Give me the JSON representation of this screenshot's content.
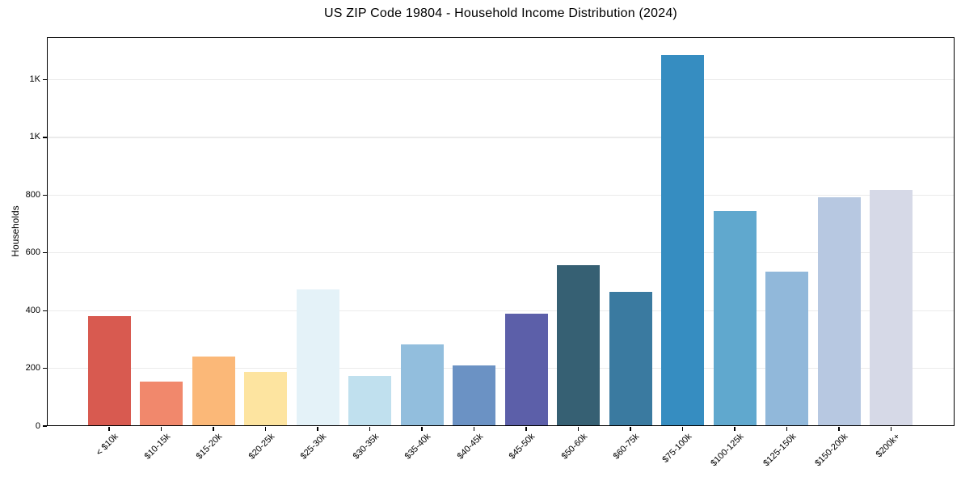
{
  "chart_data": {
    "type": "bar",
    "title": "US ZIP Code 19804 - Household Income Distribution (2024)",
    "xlabel": "",
    "ylabel": "Households",
    "categories": [
      "< $10k",
      "$10-15k",
      "$15-20k",
      "$20-25k",
      "$25-30k",
      "$30-35k",
      "$35-40k",
      "$40-45k",
      "$45-50k",
      "$50-60k",
      "$60-75k",
      "$75-100k",
      "$100-125k",
      "$125-150k",
      "$150-200k",
      "$200k+"
    ],
    "values": [
      382,
      155,
      242,
      188,
      473,
      174,
      283,
      211,
      388,
      558,
      464,
      1285,
      745,
      535,
      792,
      817
    ],
    "bar_colors": [
      "#d85a50",
      "#f1886c",
      "#fbb878",
      "#fde4a0",
      "#e4f2f8",
      "#c0e0ee",
      "#92bedd",
      "#6b92c4",
      "#5c5fa9",
      "#366073",
      "#3a7aa0",
      "#368dc1",
      "#60a8ce",
      "#91b8da",
      "#b7c8e1",
      "#d6d9e7"
    ],
    "ylim": [
      0,
      1347
    ],
    "yticks": [
      {
        "value": 0,
        "label": "0"
      },
      {
        "value": 200,
        "label": "200"
      },
      {
        "value": 400,
        "label": "400"
      },
      {
        "value": 600,
        "label": "600"
      },
      {
        "value": 800,
        "label": "800"
      },
      {
        "value": 1000,
        "label": "1K"
      },
      {
        "value": 1200,
        "label": "1K"
      }
    ],
    "grid": "horizontal",
    "grid_color": "#ebebeb",
    "frame_color": "#000000",
    "background": "#ffffff",
    "legend": "none"
  }
}
